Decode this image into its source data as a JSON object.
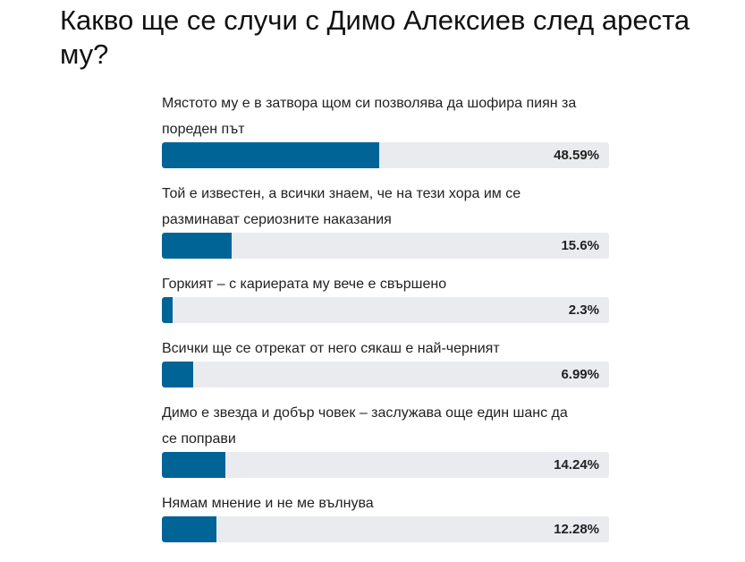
{
  "chart_data": {
    "type": "bar",
    "orientation": "horizontal",
    "title": "Какво ще се случи с Димо Алексиев след ареста му?",
    "categories": [
      "Мястото му е в затвора щом си позволява да шофира пиян за пореден път",
      "Той е известен, а всички знаем, че на тези хора им се разминават сериозните наказания",
      "Горкият – с кариерата му вече е свършено",
      "Всички ще се отрекат от него сякаш е най-черният",
      "Димо е звезда и добър човек – заслужава още един шанс да се поправи",
      "Нямам мнение и не ме вълнува"
    ],
    "values": [
      48.59,
      15.6,
      2.3,
      6.99,
      14.24,
      12.28
    ],
    "value_labels": [
      "48.59%",
      "15.6%",
      "2.3%",
      "6.99%",
      "14.24%",
      "12.28%"
    ],
    "xlim": [
      0,
      100
    ],
    "color": "#006497",
    "track_color": "#e9ebee"
  }
}
